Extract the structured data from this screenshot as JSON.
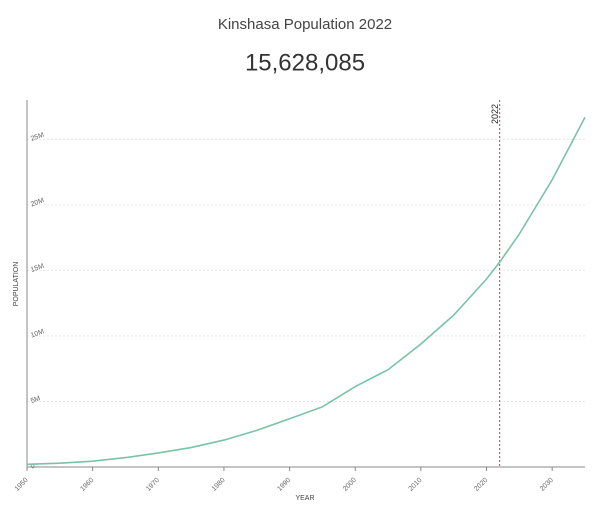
{
  "chart_data": {
    "type": "line",
    "title": "Kinshasa Population 2022",
    "headline": "15,628,085",
    "x_label": "YEAR",
    "y_label": "POPULATION",
    "x": [
      1950,
      1955,
      1960,
      1965,
      1970,
      1975,
      1980,
      1985,
      1990,
      1995,
      2000,
      2005,
      2010,
      2015,
      2020,
      2022,
      2025,
      2030,
      2035
    ],
    "series": [
      {
        "name": "Population",
        "color": "#79c3a6",
        "values": [
          202000,
          292000,
          443000,
          717000,
          1070000,
          1482000,
          2053000,
          2793000,
          3683000,
          4590000,
          6140000,
          7421000,
          9382000,
          11587000,
          14342000,
          15628085,
          17778000,
          21914000,
          26683000
        ]
      }
    ],
    "xlim": [
      1950,
      2035
    ],
    "xticks": [
      1950,
      1960,
      1970,
      1980,
      1990,
      2000,
      2010,
      2020,
      2030
    ],
    "ylim": [
      0,
      28000000
    ],
    "yticks": [
      0,
      {
        "value": 5000000,
        "label": "5M"
      },
      {
        "value": 10000000,
        "label": "10M"
      },
      {
        "value": 15000000,
        "label": "15M"
      },
      {
        "value": 20000000,
        "label": "20M"
      },
      {
        "value": 25000000,
        "label": "25M"
      }
    ],
    "grid": true,
    "marker": {
      "x": 2022,
      "color": "#e0313b"
    }
  }
}
